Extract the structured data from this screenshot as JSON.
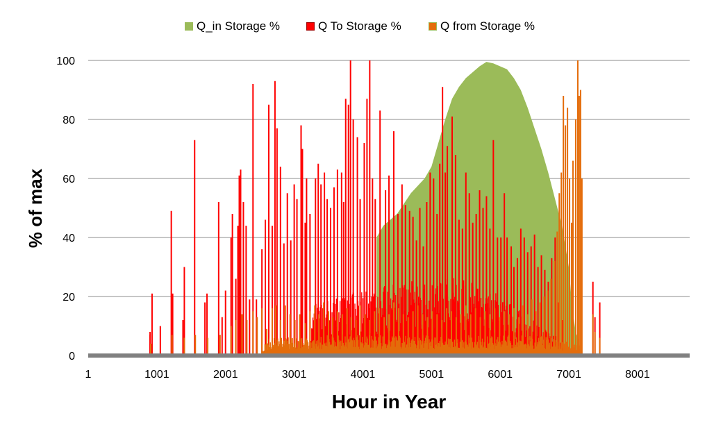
{
  "chart_data": {
    "type": "area",
    "title": "",
    "xlabel": "Hour in Year",
    "ylabel": "% of max",
    "xlim": [
      1,
      8760
    ],
    "ylim": [
      0,
      100
    ],
    "xticks": [
      "1",
      "1001",
      "2001",
      "3001",
      "4001",
      "5001",
      "6001",
      "7001",
      "8001"
    ],
    "xtick_values": [
      1,
      1001,
      2001,
      3001,
      4001,
      5001,
      6001,
      7001,
      8001
    ],
    "yticks": [
      "0",
      "20",
      "40",
      "60",
      "80",
      "100"
    ],
    "ytick_values": [
      0,
      20,
      40,
      60,
      80,
      100
    ],
    "grid": "horizontal",
    "legend_position": "top",
    "series": [
      {
        "name": "Q_in Storage %",
        "color": "#9bbb59",
        "kind": "area",
        "points": [
          [
            1,
            0
          ],
          [
            4199,
            0
          ],
          [
            4200,
            40
          ],
          [
            4300,
            44
          ],
          [
            4500,
            48
          ],
          [
            4700,
            55
          ],
          [
            4900,
            60
          ],
          [
            5000,
            64
          ],
          [
            5100,
            72
          ],
          [
            5200,
            80
          ],
          [
            5300,
            87
          ],
          [
            5400,
            91
          ],
          [
            5500,
            94
          ],
          [
            5600,
            96
          ],
          [
            5700,
            98
          ],
          [
            5800,
            99.5
          ],
          [
            5900,
            99
          ],
          [
            6000,
            98
          ],
          [
            6100,
            97
          ],
          [
            6200,
            94
          ],
          [
            6300,
            90
          ],
          [
            6400,
            84
          ],
          [
            6500,
            77
          ],
          [
            6600,
            70
          ],
          [
            6700,
            62
          ],
          [
            6800,
            53
          ],
          [
            6900,
            44
          ],
          [
            7000,
            30
          ],
          [
            7050,
            16
          ],
          [
            7100,
            8
          ],
          [
            7150,
            5
          ],
          [
            7180,
            0
          ],
          [
            8760,
            0
          ]
        ]
      },
      {
        "name": "Q To Storage %",
        "color": "#ff0000",
        "kind": "spikes",
        "base_band": [
          [
            3201,
            0
          ],
          [
            3300,
            17
          ],
          [
            3800,
            19
          ],
          [
            4200,
            20
          ],
          [
            4700,
            22
          ],
          [
            5400,
            23
          ],
          [
            6000,
            18
          ],
          [
            6400,
            12
          ],
          [
            6800,
            6
          ],
          [
            7000,
            0
          ],
          [
            8760,
            0
          ]
        ],
        "spikes": [
          [
            901,
            7
          ],
          [
            902,
            8
          ],
          [
            931,
            21
          ],
          [
            1051,
            10
          ],
          [
            1211,
            49
          ],
          [
            1231,
            21
          ],
          [
            1381,
            12
          ],
          [
            1401,
            30
          ],
          [
            1551,
            73
          ],
          [
            1701,
            18
          ],
          [
            1731,
            21
          ],
          [
            1901,
            52
          ],
          [
            1951,
            13
          ],
          [
            2001,
            22
          ],
          [
            2081,
            40
          ],
          [
            2101,
            48
          ],
          [
            2151,
            26
          ],
          [
            2181,
            44
          ],
          [
            2201,
            61
          ],
          [
            2221,
            63
          ],
          [
            2261,
            52
          ],
          [
            2301,
            44
          ],
          [
            2351,
            19
          ],
          [
            2401,
            92
          ],
          [
            2451,
            19
          ],
          [
            2531,
            36
          ],
          [
            2581,
            46
          ],
          [
            2631,
            85
          ],
          [
            2681,
            44
          ],
          [
            2721,
            93
          ],
          [
            2751,
            77
          ],
          [
            2801,
            64
          ],
          [
            2851,
            38
          ],
          [
            2901,
            55
          ],
          [
            2951,
            39
          ],
          [
            3001,
            58
          ],
          [
            3041,
            53
          ],
          [
            3101,
            78
          ],
          [
            3121,
            70
          ],
          [
            3161,
            45
          ],
          [
            3181,
            60
          ],
          [
            3231,
            48
          ],
          [
            3311,
            60
          ],
          [
            3351,
            65
          ],
          [
            3391,
            58
          ],
          [
            3441,
            62
          ],
          [
            3481,
            53
          ],
          [
            3531,
            50
          ],
          [
            3581,
            57
          ],
          [
            3631,
            63
          ],
          [
            3691,
            62
          ],
          [
            3721,
            52
          ],
          [
            3751,
            87
          ],
          [
            3791,
            85
          ],
          [
            3821,
            100
          ],
          [
            3861,
            80
          ],
          [
            3921,
            74
          ],
          [
            3961,
            53
          ],
          [
            4021,
            72
          ],
          [
            4061,
            87
          ],
          [
            4101,
            100
          ],
          [
            4141,
            60
          ],
          [
            4181,
            53
          ],
          [
            4251,
            83
          ],
          [
            4331,
            56
          ],
          [
            4381,
            61
          ],
          [
            4451,
            76
          ],
          [
            4511,
            48
          ],
          [
            4571,
            58
          ],
          [
            4621,
            51
          ],
          [
            4681,
            49
          ],
          [
            4731,
            47
          ],
          [
            4781,
            39
          ],
          [
            4831,
            50
          ],
          [
            4881,
            37
          ],
          [
            4931,
            52
          ],
          [
            4981,
            62
          ],
          [
            5031,
            60
          ],
          [
            5081,
            48
          ],
          [
            5121,
            65
          ],
          [
            5161,
            91
          ],
          [
            5201,
            62
          ],
          [
            5231,
            71
          ],
          [
            5301,
            81
          ],
          [
            5351,
            68
          ],
          [
            5401,
            46
          ],
          [
            5451,
            43
          ],
          [
            5501,
            62
          ],
          [
            5551,
            55
          ],
          [
            5601,
            45
          ],
          [
            5651,
            48
          ],
          [
            5701,
            56
          ],
          [
            5751,
            50
          ],
          [
            5801,
            54
          ],
          [
            5851,
            43
          ],
          [
            5901,
            73
          ],
          [
            5961,
            40
          ],
          [
            6011,
            40
          ],
          [
            6061,
            55
          ],
          [
            6101,
            40
          ],
          [
            6161,
            37
          ],
          [
            6201,
            30
          ],
          [
            6251,
            33
          ],
          [
            6301,
            43
          ],
          [
            6351,
            40
          ],
          [
            6401,
            35
          ],
          [
            6451,
            37
          ],
          [
            6501,
            41
          ],
          [
            6551,
            30
          ],
          [
            6601,
            34
          ],
          [
            6651,
            29
          ],
          [
            6701,
            25
          ],
          [
            6751,
            33
          ],
          [
            6801,
            40
          ],
          [
            6851,
            18
          ],
          [
            6901,
            12
          ],
          [
            7351,
            25
          ],
          [
            7381,
            13
          ],
          [
            7451,
            18
          ]
        ]
      },
      {
        "name": "Q from Storage %",
        "color": "#e46c0a",
        "kind": "spikes",
        "base_band": [
          [
            2501,
            0
          ],
          [
            2600,
            5
          ],
          [
            3400,
            6
          ],
          [
            4500,
            6
          ],
          [
            5600,
            6
          ],
          [
            6600,
            6
          ],
          [
            6800,
            5
          ],
          [
            7000,
            4
          ],
          [
            7150,
            3
          ],
          [
            7180,
            0
          ],
          [
            8760,
            0
          ]
        ],
        "spikes": [
          [
            911,
            4
          ],
          [
            1221,
            7
          ],
          [
            1401,
            6
          ],
          [
            1561,
            7
          ],
          [
            1741,
            6
          ],
          [
            1921,
            7
          ],
          [
            2081,
            10
          ],
          [
            2151,
            12
          ],
          [
            2241,
            14
          ],
          [
            2311,
            12
          ],
          [
            2401,
            15
          ],
          [
            2461,
            13
          ],
          [
            2531,
            16
          ],
          [
            2601,
            9
          ],
          [
            2681,
            16
          ],
          [
            2731,
            17
          ],
          [
            2801,
            12
          ],
          [
            2871,
            17
          ],
          [
            2941,
            14
          ],
          [
            3011,
            12
          ],
          [
            3081,
            14
          ],
          [
            3161,
            11
          ],
          [
            3231,
            15
          ],
          [
            3301,
            17
          ],
          [
            3361,
            14
          ],
          [
            3431,
            18
          ],
          [
            3501,
            15
          ],
          [
            3561,
            13
          ],
          [
            3631,
            15
          ],
          [
            3701,
            14
          ],
          [
            3771,
            16
          ],
          [
            3831,
            13
          ],
          [
            3901,
            12
          ],
          [
            3961,
            17
          ],
          [
            4031,
            14
          ],
          [
            4101,
            12
          ],
          [
            4171,
            15
          ],
          [
            4241,
            16
          ],
          [
            4311,
            13
          ],
          [
            4381,
            14
          ],
          [
            4451,
            18
          ],
          [
            4521,
            16
          ],
          [
            4591,
            14
          ],
          [
            4661,
            13
          ],
          [
            4731,
            15
          ],
          [
            4801,
            17
          ],
          [
            4871,
            14
          ],
          [
            4941,
            13
          ],
          [
            5011,
            15
          ],
          [
            5081,
            14
          ],
          [
            5151,
            12
          ],
          [
            5221,
            16
          ],
          [
            5291,
            15
          ],
          [
            5361,
            13
          ],
          [
            5431,
            14
          ],
          [
            5501,
            17
          ],
          [
            5571,
            14
          ],
          [
            5641,
            16
          ],
          [
            5711,
            13
          ],
          [
            5781,
            15
          ],
          [
            5851,
            14
          ],
          [
            5921,
            16
          ],
          [
            5991,
            13
          ],
          [
            6061,
            15
          ],
          [
            6131,
            14
          ],
          [
            6201,
            16
          ],
          [
            6271,
            13
          ],
          [
            6331,
            17
          ],
          [
            6401,
            14
          ],
          [
            6461,
            19
          ],
          [
            6521,
            15
          ],
          [
            6581,
            18
          ],
          [
            6641,
            20
          ],
          [
            6691,
            22
          ],
          [
            6741,
            26
          ],
          [
            6791,
            32
          ],
          [
            6831,
            42
          ],
          [
            6861,
            55
          ],
          [
            6891,
            62
          ],
          [
            6921,
            88
          ],
          [
            6951,
            78
          ],
          [
            6981,
            84
          ],
          [
            7011,
            60
          ],
          [
            7041,
            45
          ],
          [
            7061,
            66
          ],
          [
            7101,
            80
          ],
          [
            7131,
            100
          ],
          [
            7151,
            88
          ],
          [
            7171,
            90
          ],
          [
            7191,
            60
          ],
          [
            7351,
            14
          ],
          [
            7381,
            8
          ],
          [
            7451,
            6
          ]
        ]
      }
    ]
  }
}
